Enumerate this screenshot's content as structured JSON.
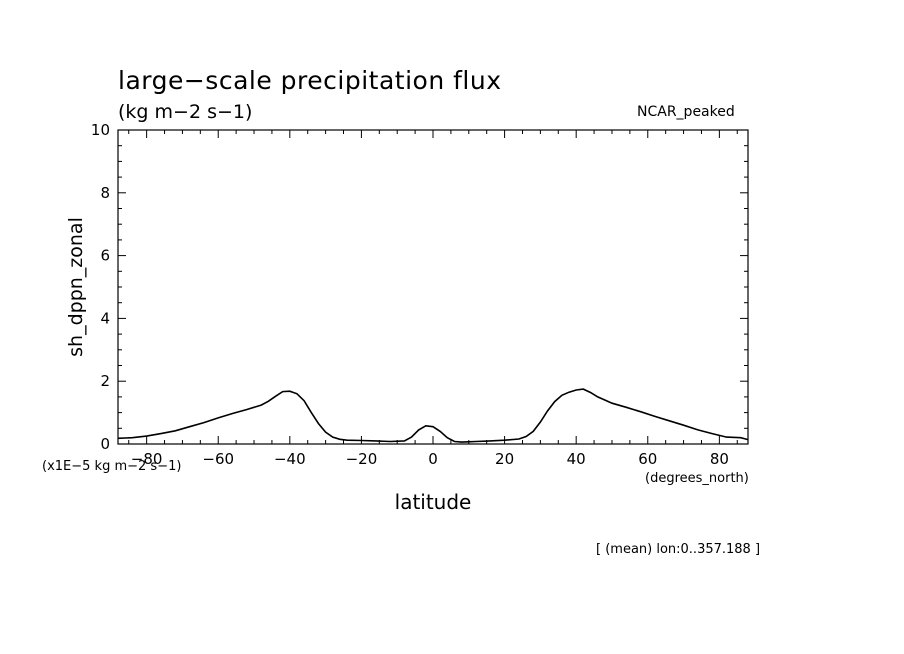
{
  "title": "large−scale precipitation flux",
  "subtitle": "(kg m−2 s−1)",
  "run_name": "NCAR_peaked",
  "footnote": "[ (mean) lon:0..357.188 ]",
  "chart_data": {
    "type": "line",
    "ylabel": "sh_dppn_zonal",
    "ylabel_units": "(x1E−5 kg m−2 s−1)",
    "xlabel": "latitude",
    "xlabel_units": "(degrees_north)",
    "xlim": [
      -88,
      88
    ],
    "ylim": [
      0,
      10
    ],
    "x_ticks": [
      -80,
      -60,
      -40,
      -20,
      0,
      20,
      40,
      60,
      80
    ],
    "x_tick_labels": [
      "−80",
      "−60",
      "−40",
      "−20",
      "0",
      "20",
      "40",
      "60",
      "80"
    ],
    "y_ticks": [
      0,
      2,
      4,
      6,
      8,
      10
    ],
    "y_tick_labels": [
      "0",
      "2",
      "4",
      "6",
      "8",
      "10"
    ],
    "grid": false,
    "series": [
      {
        "x": [
          -88,
          -84,
          -80,
          -76,
          -72,
          -68,
          -64,
          -60,
          -56,
          -52,
          -48,
          -46,
          -44,
          -42,
          -40,
          -38,
          -36,
          -34,
          -32,
          -30,
          -28,
          -26,
          -24,
          -20,
          -16,
          -12,
          -8,
          -6,
          -4,
          -2,
          0,
          2,
          4,
          6,
          8,
          10,
          12,
          16,
          20,
          24,
          26,
          28,
          30,
          32,
          34,
          36,
          38,
          40,
          42,
          44,
          46,
          48,
          50,
          54,
          58,
          62,
          66,
          70,
          74,
          78,
          82,
          86,
          88
        ],
        "y": [
          0.18,
          0.2,
          0.25,
          0.33,
          0.42,
          0.55,
          0.68,
          0.83,
          0.97,
          1.1,
          1.24,
          1.36,
          1.52,
          1.67,
          1.68,
          1.6,
          1.38,
          1.0,
          0.65,
          0.38,
          0.22,
          0.15,
          0.12,
          0.11,
          0.1,
          0.08,
          0.1,
          0.22,
          0.45,
          0.58,
          0.55,
          0.4,
          0.2,
          0.08,
          0.06,
          0.07,
          0.08,
          0.1,
          0.12,
          0.16,
          0.24,
          0.4,
          0.7,
          1.05,
          1.35,
          1.55,
          1.65,
          1.72,
          1.75,
          1.64,
          1.5,
          1.4,
          1.3,
          1.17,
          1.03,
          0.88,
          0.74,
          0.6,
          0.45,
          0.33,
          0.22,
          0.2,
          0.14
        ]
      }
    ]
  }
}
